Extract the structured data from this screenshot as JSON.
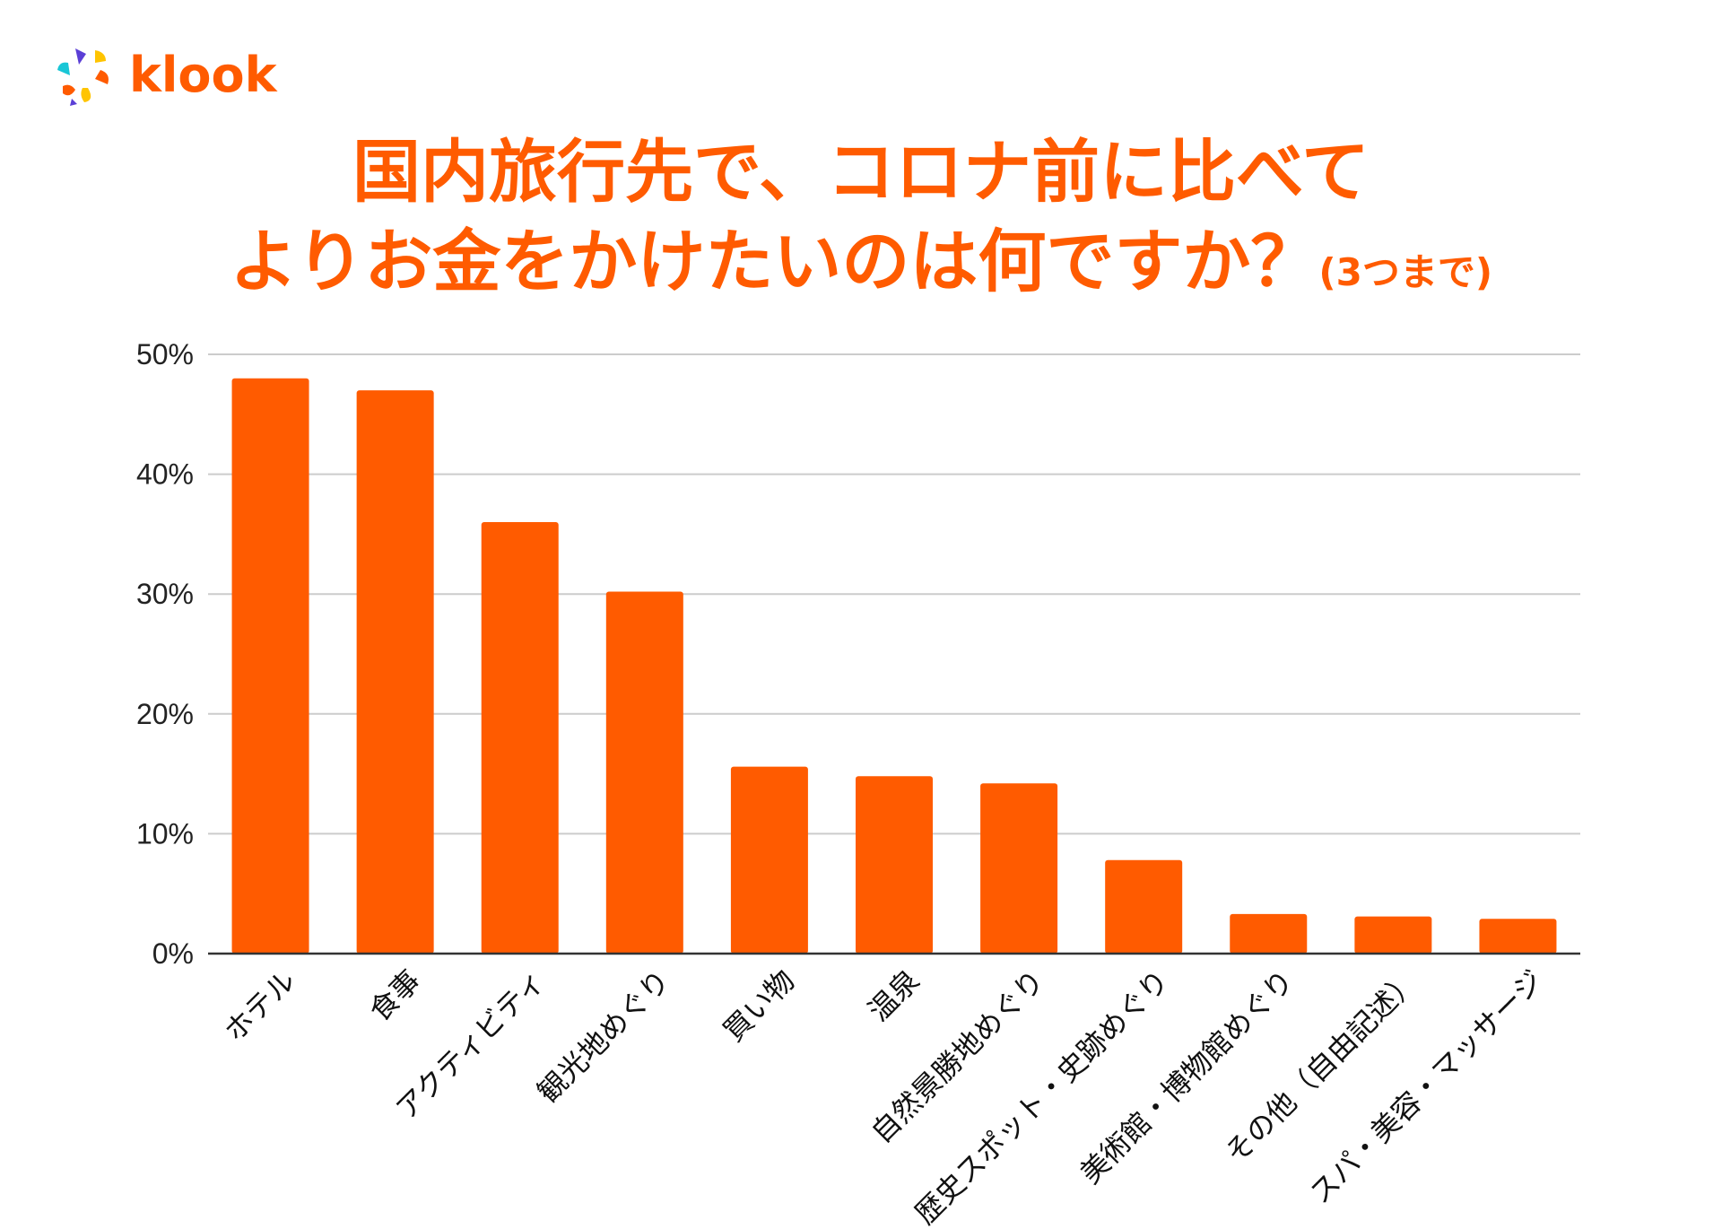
{
  "brand": {
    "name": "klook",
    "accent": "#ff5b00"
  },
  "title": {
    "line1": "国内旅行先で、コロナ前に比べて",
    "line2": "よりお金をかけたいのは何ですか？",
    "note": "(3つまで)"
  },
  "chart_data": {
    "type": "bar",
    "categories": [
      "ホテル",
      "食事",
      "アクティビティ",
      "観光地めぐり",
      "買い物",
      "温泉",
      "自然景勝地めぐり",
      "歴史スポット・史跡めぐり",
      "美術館・博物館めぐり",
      "その他（自由記述）",
      "スパ・美容・マッサージ"
    ],
    "values": [
      48.0,
      47.0,
      36.0,
      30.2,
      15.6,
      14.8,
      14.2,
      7.8,
      3.3,
      3.1,
      2.9
    ],
    "y_ticks": [
      "0%",
      "10%",
      "20%",
      "30%",
      "40%",
      "50%"
    ],
    "ylim": [
      0,
      50
    ],
    "unit": "%",
    "grid": true,
    "bar_color": "#ff5b00",
    "grid_color": "#cccccc"
  }
}
